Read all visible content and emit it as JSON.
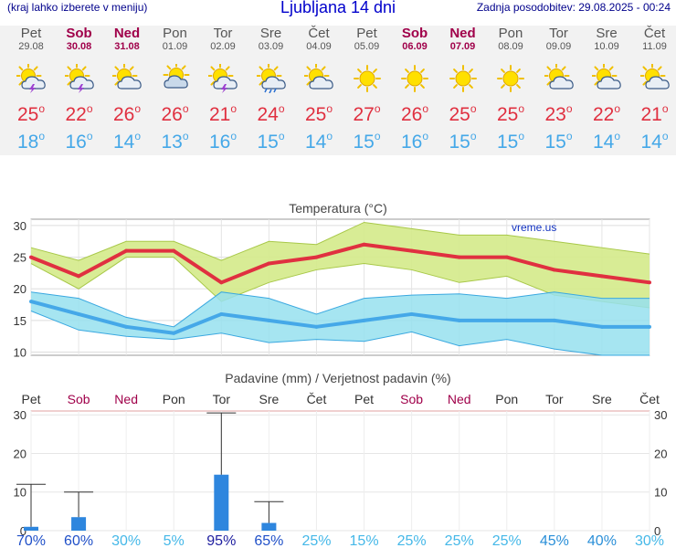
{
  "header": {
    "hint": "(kraj lahko izberete v meniju)",
    "title": "Ljubljana 14 dni",
    "updated": "Zadnja posodobitev: 29.08.2025 - 00:24"
  },
  "days": [
    {
      "name": "Pet",
      "date": "29.08",
      "weekend": false,
      "icon": "sun-cloud-storm-icon",
      "tmax": "25",
      "tmin": "18"
    },
    {
      "name": "Sob",
      "date": "30.08",
      "weekend": true,
      "icon": "sun-cloud-storm-icon",
      "tmax": "22",
      "tmin": "16"
    },
    {
      "name": "Ned",
      "date": "31.08",
      "weekend": true,
      "icon": "sun-cloud-icon",
      "tmax": "26",
      "tmin": "14"
    },
    {
      "name": "Pon",
      "date": "01.09",
      "weekend": false,
      "icon": "cloud-sun-icon",
      "tmax": "26",
      "tmin": "13"
    },
    {
      "name": "Tor",
      "date": "02.09",
      "weekend": false,
      "icon": "sun-cloud-storm-icon",
      "tmax": "21",
      "tmin": "16"
    },
    {
      "name": "Sre",
      "date": "03.09",
      "weekend": false,
      "icon": "sun-cloud-rain-icon",
      "tmax": "24",
      "tmin": "15"
    },
    {
      "name": "Čet",
      "date": "04.09",
      "weekend": false,
      "icon": "sun-cloud-icon",
      "tmax": "25",
      "tmin": "14"
    },
    {
      "name": "Pet",
      "date": "05.09",
      "weekend": false,
      "icon": "sun-icon",
      "tmax": "27",
      "tmin": "15"
    },
    {
      "name": "Sob",
      "date": "06.09",
      "weekend": true,
      "icon": "sun-icon",
      "tmax": "26",
      "tmin": "16"
    },
    {
      "name": "Ned",
      "date": "07.09",
      "weekend": true,
      "icon": "sun-icon",
      "tmax": "25",
      "tmin": "15"
    },
    {
      "name": "Pon",
      "date": "08.09",
      "weekend": false,
      "icon": "sun-icon",
      "tmax": "25",
      "tmin": "15"
    },
    {
      "name": "Tor",
      "date": "09.09",
      "weekend": false,
      "icon": "sun-cloud-icon",
      "tmax": "23",
      "tmin": "15"
    },
    {
      "name": "Sre",
      "date": "10.09",
      "weekend": false,
      "icon": "sun-cloud-icon",
      "tmax": "22",
      "tmin": "14"
    },
    {
      "name": "Čet",
      "date": "11.09",
      "weekend": false,
      "icon": "sun-cloud-icon",
      "tmax": "21",
      "tmin": "14"
    }
  ],
  "colors": {
    "tmax": "#e03040",
    "tmin": "#45a8e8",
    "weekend": "#a0004a",
    "band_max": "#d4ea8a",
    "band_min": "#96e0ee",
    "rain_bar": "#2e86de"
  },
  "chart_data": [
    {
      "type": "line",
      "title": "Temperatura (°C)",
      "watermark": "vreme.us",
      "categories": [
        "Pet",
        "Sob",
        "Ned",
        "Pon",
        "Tor",
        "Sre",
        "Čet",
        "Pet",
        "Sob",
        "Ned",
        "Pon",
        "Tor",
        "Sre",
        "Čet"
      ],
      "ylim": [
        9.5,
        31
      ],
      "yticks": [
        10,
        15,
        20,
        25,
        30
      ],
      "grid": true,
      "series": [
        {
          "values": [
            25,
            22,
            26,
            26,
            21,
            24,
            25,
            27,
            26,
            25,
            25,
            23,
            22,
            21
          ],
          "band_low": [
            24,
            20,
            25,
            25,
            18,
            21,
            23,
            24,
            23,
            21,
            22,
            19,
            18,
            17
          ],
          "band_high": [
            26.5,
            24.5,
            27.5,
            27.5,
            24.5,
            27.5,
            27,
            30.5,
            29.5,
            28.5,
            28.5,
            27.5,
            26.5,
            25.5
          ]
        },
        {
          "values": [
            18,
            16,
            14,
            13,
            16,
            15,
            14,
            15,
            16,
            15,
            15,
            15,
            14,
            14
          ],
          "band_low": [
            16.5,
            13.5,
            12.5,
            12,
            13,
            11.5,
            12,
            11.7,
            13.2,
            11,
            12,
            10.5,
            9.5,
            9.5
          ],
          "band_high": [
            19.5,
            18.5,
            15.5,
            14,
            19.5,
            18.5,
            16,
            18.5,
            19,
            19.2,
            18.5,
            19.5,
            18.5,
            18.5
          ]
        }
      ]
    },
    {
      "type": "bar",
      "title": "Padavine (mm) / Verjetnost padavin (%)",
      "categories": [
        "Pet",
        "Sob",
        "Ned",
        "Pon",
        "Tor",
        "Sre",
        "Čet",
        "Pet",
        "Sob",
        "Ned",
        "Pon",
        "Tor",
        "Sre",
        "Čet"
      ],
      "values": [
        1,
        3.5,
        0,
        0,
        14.5,
        2,
        0,
        0,
        0,
        0,
        0,
        0,
        0,
        0
      ],
      "errors_max": [
        12,
        10,
        0,
        0,
        30.5,
        7.5,
        0,
        0,
        0,
        0,
        0,
        0,
        0,
        0
      ],
      "probability": [
        "70%",
        "60%",
        "30%",
        "5%",
        "95%",
        "65%",
        "25%",
        "15%",
        "25%",
        "25%",
        "25%",
        "45%",
        "40%",
        "30%"
      ],
      "ylim": [
        0,
        31
      ],
      "yticks": [
        0,
        10,
        20,
        30
      ]
    }
  ]
}
